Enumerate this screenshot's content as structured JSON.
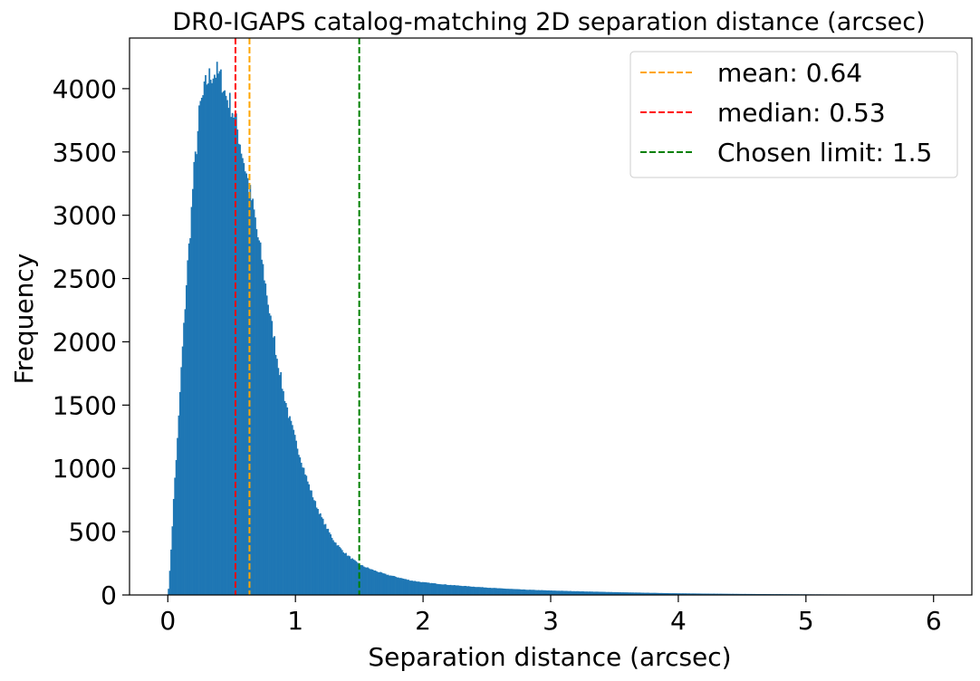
{
  "chart_data": {
    "type": "bar",
    "title": "DR0-IGAPS catalog-matching 2D separation distance (arcsec)",
    "xlabel": "Separation distance (arcsec)",
    "ylabel": "Frequency",
    "xlim": [
      -0.3,
      6.3
    ],
    "ylim": [
      0,
      4400
    ],
    "xticks": [
      0,
      1,
      2,
      3,
      4,
      5,
      6
    ],
    "yticks": [
      0,
      500,
      1000,
      1500,
      2000,
      2500,
      3000,
      3500,
      4000
    ],
    "bar_color": "#1f77b4",
    "histogram_profile": {
      "x": [
        0.0,
        0.01,
        0.03,
        0.05,
        0.08,
        0.1,
        0.13,
        0.15,
        0.18,
        0.2,
        0.23,
        0.25,
        0.28,
        0.3,
        0.33,
        0.35,
        0.38,
        0.4,
        0.43,
        0.45,
        0.48,
        0.5,
        0.53,
        0.55,
        0.58,
        0.6,
        0.63,
        0.65,
        0.68,
        0.7,
        0.73,
        0.75,
        0.78,
        0.8,
        0.83,
        0.85,
        0.88,
        0.9,
        0.93,
        0.95,
        0.98,
        1.0,
        1.05,
        1.1,
        1.15,
        1.2,
        1.25,
        1.3,
        1.35,
        1.4,
        1.45,
        1.5,
        1.6,
        1.7,
        1.8,
        1.9,
        2.0,
        2.2,
        2.4,
        2.6,
        2.8,
        3.0,
        3.3,
        3.6,
        4.0,
        4.5,
        5.0,
        5.5,
        6.0
      ],
      "y": [
        0,
        100,
        450,
        850,
        1300,
        1700,
        2200,
        2550,
        2950,
        3300,
        3600,
        3850,
        3950,
        4050,
        4100,
        4120,
        4130,
        4100,
        4050,
        3950,
        3900,
        3850,
        3750,
        3650,
        3500,
        3400,
        3250,
        3150,
        3000,
        2850,
        2700,
        2550,
        2350,
        2200,
        2050,
        1900,
        1750,
        1620,
        1500,
        1400,
        1300,
        1220,
        1050,
        880,
        740,
        620,
        520,
        430,
        370,
        320,
        280,
        240,
        200,
        165,
        140,
        115,
        100,
        80,
        65,
        52,
        42,
        35,
        27,
        20,
        13,
        8,
        5,
        3,
        1
      ]
    },
    "vlines": [
      {
        "x": 0.64,
        "color": "#ffa500",
        "label": "mean: 0.64"
      },
      {
        "x": 0.53,
        "color": "#ff0000",
        "label": "median: 0.53"
      },
      {
        "x": 1.5,
        "color": "#008000",
        "label": "Chosen limit: 1.5"
      }
    ],
    "legend_position": "top-right",
    "grid": false
  }
}
